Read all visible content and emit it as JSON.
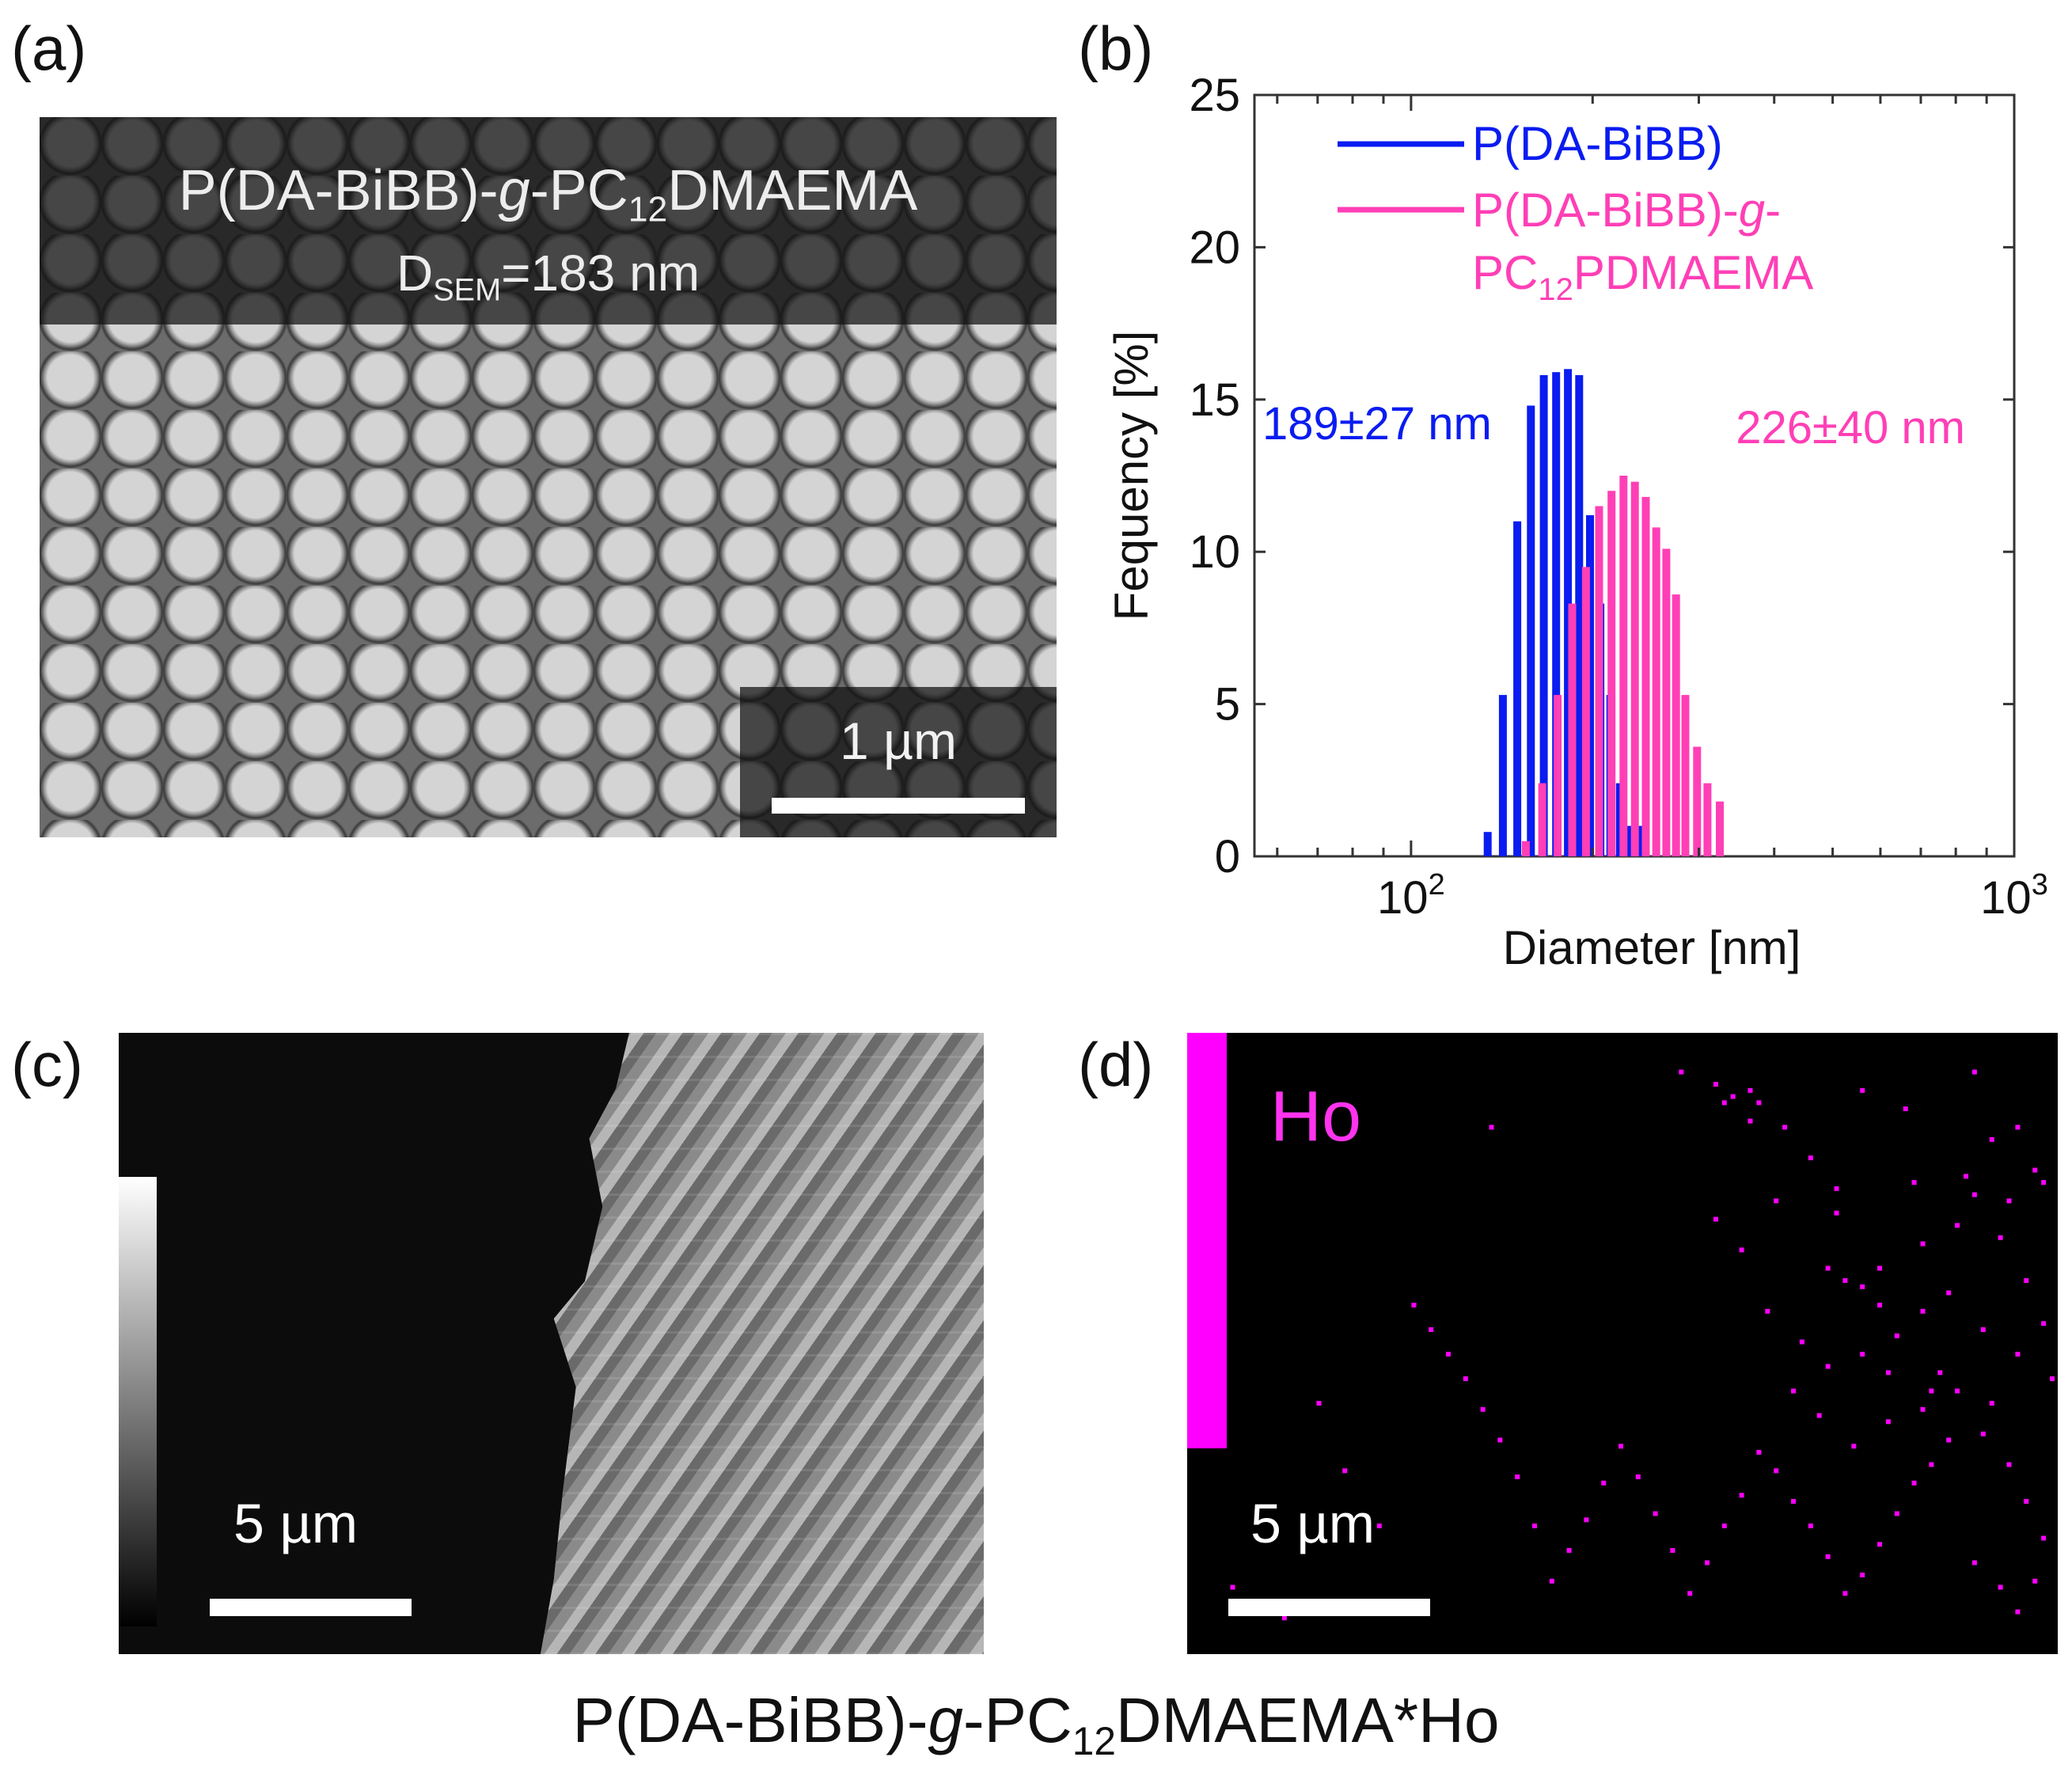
{
  "panels": {
    "a": {
      "label": "(a)",
      "title_parts": [
        "P(DA-BiBB)-",
        "g",
        "-PC",
        "12",
        "DMAEMA"
      ],
      "dsem_parts": [
        "D",
        "SEM",
        "=183 nm"
      ],
      "scalebar": "1 µm"
    },
    "b": {
      "label": "(b)"
    },
    "c": {
      "label": "(c)",
      "scalebar": "5 µm"
    },
    "d": {
      "label": "(d)",
      "element": "Ho",
      "scalebar": "5 µm"
    }
  },
  "caption_parts": [
    "P(DA-BiBB)-",
    "g",
    "-PC",
    "12",
    "DMAEMA*Ho"
  ],
  "chart_data": {
    "type": "bar",
    "xlabel": "Diameter [nm]",
    "ylabel": "Fequency [%]",
    "xscale": "log",
    "xlim": [
      55,
      1000
    ],
    "ylim": [
      0,
      25
    ],
    "yticks": [
      0,
      5,
      10,
      15,
      20,
      25
    ],
    "xtick_labels": [
      {
        "value": 100,
        "base": "10",
        "exp": "2"
      },
      {
        "value": 1000,
        "base": "10",
        "exp": "3"
      }
    ],
    "legend_position": "top",
    "series": [
      {
        "name": "P(DA-BiBB)",
        "color": "#0a1cf0",
        "annotation": "189±27 nm",
        "x": [
          134,
          142,
          150,
          158,
          166,
          174,
          182,
          190,
          198,
          206,
          214,
          222,
          230,
          238
        ],
        "values": [
          0.8,
          5.3,
          11.0,
          14.8,
          15.8,
          15.9,
          16.0,
          15.8,
          11.2,
          8.3,
          5.3,
          2.4,
          1.0,
          1.0
        ]
      },
      {
        "name_parts": [
          "P(DA-BiBB)-",
          "g",
          "-",
          "PC",
          "12",
          "PDMAEMA"
        ],
        "color": "#ff3fb6",
        "annotation": "226±40 nm",
        "x": [
          155,
          165,
          175,
          185,
          195,
          205,
          215,
          225,
          235,
          245,
          255,
          265,
          275,
          285,
          298,
          310,
          325
        ],
        "values": [
          0.5,
          2.4,
          5.3,
          8.3,
          9.5,
          11.5,
          12.0,
          12.5,
          12.3,
          11.8,
          10.8,
          10.1,
          8.6,
          5.3,
          3.6,
          2.4,
          1.8
        ]
      }
    ]
  },
  "colors": {
    "blue": "#0a1cf0",
    "pink": "#ff3fb6",
    "magenta": "#ff00ff"
  },
  "ho_dots": [
    [
      22,
      80
    ],
    [
      35,
      15
    ],
    [
      57,
      6
    ],
    [
      61,
      8
    ],
    [
      62,
      11
    ],
    [
      63,
      10
    ],
    [
      65,
      14
    ],
    [
      65,
      9
    ],
    [
      66,
      11
    ],
    [
      68,
      27
    ],
    [
      69,
      15
    ],
    [
      72,
      20
    ],
    [
      74,
      38
    ],
    [
      75,
      29
    ],
    [
      75,
      25
    ],
    [
      76,
      40
    ],
    [
      78,
      41
    ],
    [
      78,
      9
    ],
    [
      80,
      38
    ],
    [
      80,
      44
    ],
    [
      82,
      49
    ],
    [
      83,
      12
    ],
    [
      84,
      24
    ],
    [
      85,
      34
    ],
    [
      85,
      45
    ],
    [
      86,
      58
    ],
    [
      87,
      55
    ],
    [
      88,
      42
    ],
    [
      89,
      31
    ],
    [
      90,
      23
    ],
    [
      91,
      6
    ],
    [
      92,
      48
    ],
    [
      93,
      60
    ],
    [
      94,
      33
    ],
    [
      95,
      27
    ],
    [
      96,
      52
    ],
    [
      97,
      40
    ],
    [
      98,
      22
    ],
    [
      99,
      47
    ],
    [
      100,
      56
    ],
    [
      99,
      24
    ],
    [
      96,
      15
    ],
    [
      93,
      17
    ],
    [
      91,
      26
    ],
    [
      88,
      66
    ],
    [
      86,
      70
    ],
    [
      84,
      73
    ],
    [
      82,
      78
    ],
    [
      80,
      83
    ],
    [
      78,
      88
    ],
    [
      76,
      91
    ],
    [
      74,
      85
    ],
    [
      72,
      80
    ],
    [
      70,
      76
    ],
    [
      68,
      71
    ],
    [
      66,
      68
    ],
    [
      64,
      75
    ],
    [
      62,
      80
    ],
    [
      60,
      86
    ],
    [
      58,
      91
    ],
    [
      56,
      84
    ],
    [
      54,
      78
    ],
    [
      52,
      72
    ],
    [
      50,
      67
    ],
    [
      48,
      73
    ],
    [
      46,
      79
    ],
    [
      44,
      84
    ],
    [
      42,
      89
    ],
    [
      40,
      80
    ],
    [
      38,
      72
    ],
    [
      36,
      66
    ],
    [
      34,
      61
    ],
    [
      32,
      56
    ],
    [
      30,
      52
    ],
    [
      28,
      48
    ],
    [
      26,
      44
    ],
    [
      70,
      58
    ],
    [
      73,
      62
    ],
    [
      77,
      67
    ],
    [
      81,
      63
    ],
    [
      85,
      61
    ],
    [
      89,
      58
    ],
    [
      92,
      65
    ],
    [
      95,
      70
    ],
    [
      97,
      76
    ],
    [
      99,
      82
    ],
    [
      98,
      89
    ],
    [
      96,
      94
    ],
    [
      94,
      90
    ],
    [
      91,
      86
    ],
    [
      61,
      30
    ],
    [
      64,
      35
    ],
    [
      67,
      45
    ],
    [
      71,
      50
    ],
    [
      74,
      54
    ],
    [
      78,
      52
    ],
    [
      81,
      55
    ],
    [
      15,
      60
    ],
    [
      18,
      71
    ],
    [
      5,
      90
    ],
    [
      11,
      95
    ]
  ]
}
